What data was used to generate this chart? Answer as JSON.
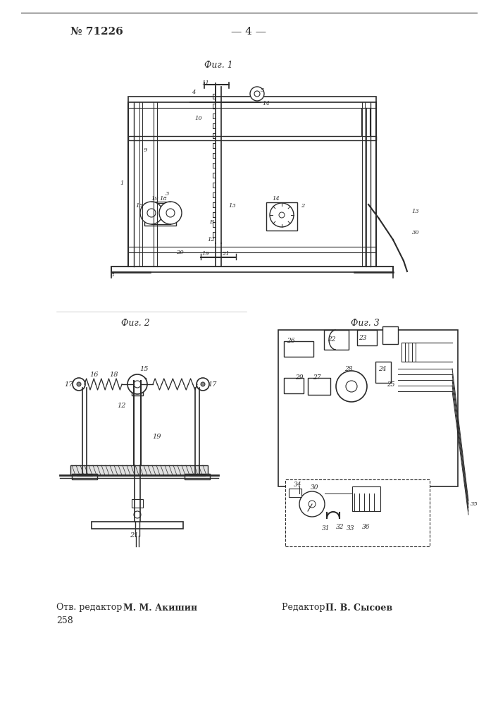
{
  "bg_color": "#ffffff",
  "header_left": "№ 71226",
  "header_center": "— 4 —",
  "header_fontsize": 11,
  "fig1_label": "Фиг. 1",
  "fig2_label": "Фиг. 2",
  "fig3_label": "Фиг. 3",
  "footer_left_prefix": "Отв. редактор ",
  "footer_left_name": "М. М. Акишин",
  "footer_left2": "258",
  "footer_right_prefix": "Редактор ",
  "footer_right_name": "П. В. Сысоев",
  "footer_fontsize": 9,
  "line_color": "#2a2a2a",
  "text_color": "#2a2a2a"
}
